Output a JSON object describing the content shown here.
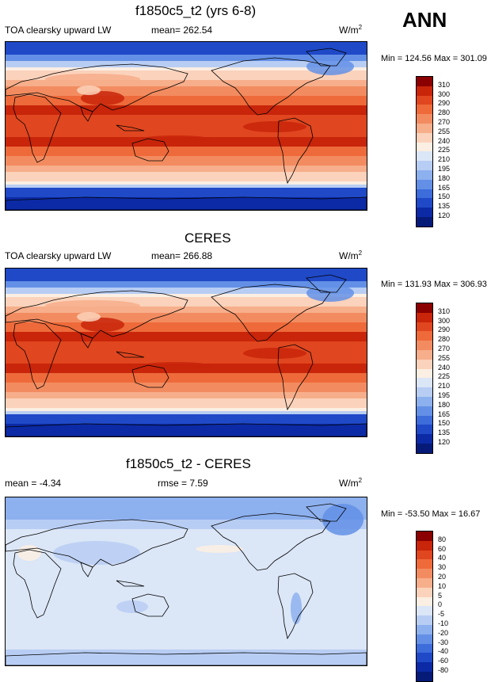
{
  "season": "ANN",
  "panels": [
    {
      "title": "f1850c5_t2 (yrs 6-8)",
      "left": "TOA clearsky upward LW",
      "middle": "mean= 262.54",
      "units": "W/m",
      "units_sup": "2",
      "minmax": "Min = 124.56 Max = 301.09"
    },
    {
      "title": "CERES",
      "left": "TOA clearsky upward LW",
      "middle": "mean= 266.88",
      "units": "W/m",
      "units_sup": "2",
      "minmax": "Min = 131.93 Max = 306.93"
    },
    {
      "title": "f1850c5_t2 - CERES",
      "left": "mean =  -4.34",
      "middle": "rmse =   7.59",
      "units": "W/m",
      "units_sup": "2",
      "minmax": "Min = -53.50 Max =  16.67"
    }
  ],
  "chart_data": [
    {
      "type": "heatmap",
      "title": "f1850c5_t2 (yrs 6-8)",
      "variable": "TOA clearsky upward LW",
      "units": "W/m2",
      "mean": 262.54,
      "min": 124.56,
      "max": 301.09,
      "levels": [
        "310",
        "300",
        "290",
        "280",
        "270",
        "255",
        "240",
        "225",
        "210",
        "195",
        "180",
        "165",
        "150",
        "135",
        "120"
      ],
      "colors": [
        "#8b0000",
        "#c8250a",
        "#e0461f",
        "#ee6a3a",
        "#f28c60",
        "#f7ae8b",
        "#fbd2bb",
        "#fbeee3",
        "#dbe6f7",
        "#b8cdf3",
        "#8db0ee",
        "#6390e6",
        "#3d6cdb",
        "#1f49c7",
        "#0c2aa5",
        "#061a78"
      ]
    },
    {
      "type": "heatmap",
      "title": "CERES",
      "variable": "TOA clearsky upward LW",
      "units": "W/m2",
      "mean": 266.88,
      "min": 131.93,
      "max": 306.93,
      "levels": [
        "310",
        "300",
        "290",
        "280",
        "270",
        "255",
        "240",
        "225",
        "210",
        "195",
        "180",
        "165",
        "150",
        "135",
        "120"
      ],
      "colors": [
        "#8b0000",
        "#c8250a",
        "#e0461f",
        "#ee6a3a",
        "#f28c60",
        "#f7ae8b",
        "#fbd2bb",
        "#fbeee3",
        "#dbe6f7",
        "#b8cdf3",
        "#8db0ee",
        "#6390e6",
        "#3d6cdb",
        "#1f49c7",
        "#0c2aa5",
        "#061a78"
      ]
    },
    {
      "type": "heatmap",
      "title": "f1850c5_t2 - CERES",
      "units": "W/m2",
      "mean": -4.34,
      "rmse": 7.59,
      "min": -53.5,
      "max": 16.67,
      "levels": [
        "80",
        "60",
        "40",
        "30",
        "20",
        "10",
        "5",
        "0",
        "-5",
        "-10",
        "-20",
        "-30",
        "-40",
        "-60",
        "-80"
      ],
      "colors": [
        "#8b0000",
        "#c8250a",
        "#e0461f",
        "#ee6a3a",
        "#f28c60",
        "#f7ae8b",
        "#fbd2bb",
        "#fbeee3",
        "#dbe6f7",
        "#b8cdf3",
        "#8db0ee",
        "#6390e6",
        "#3d6cdb",
        "#1f49c7",
        "#0c2aa5",
        "#061a78"
      ]
    }
  ]
}
